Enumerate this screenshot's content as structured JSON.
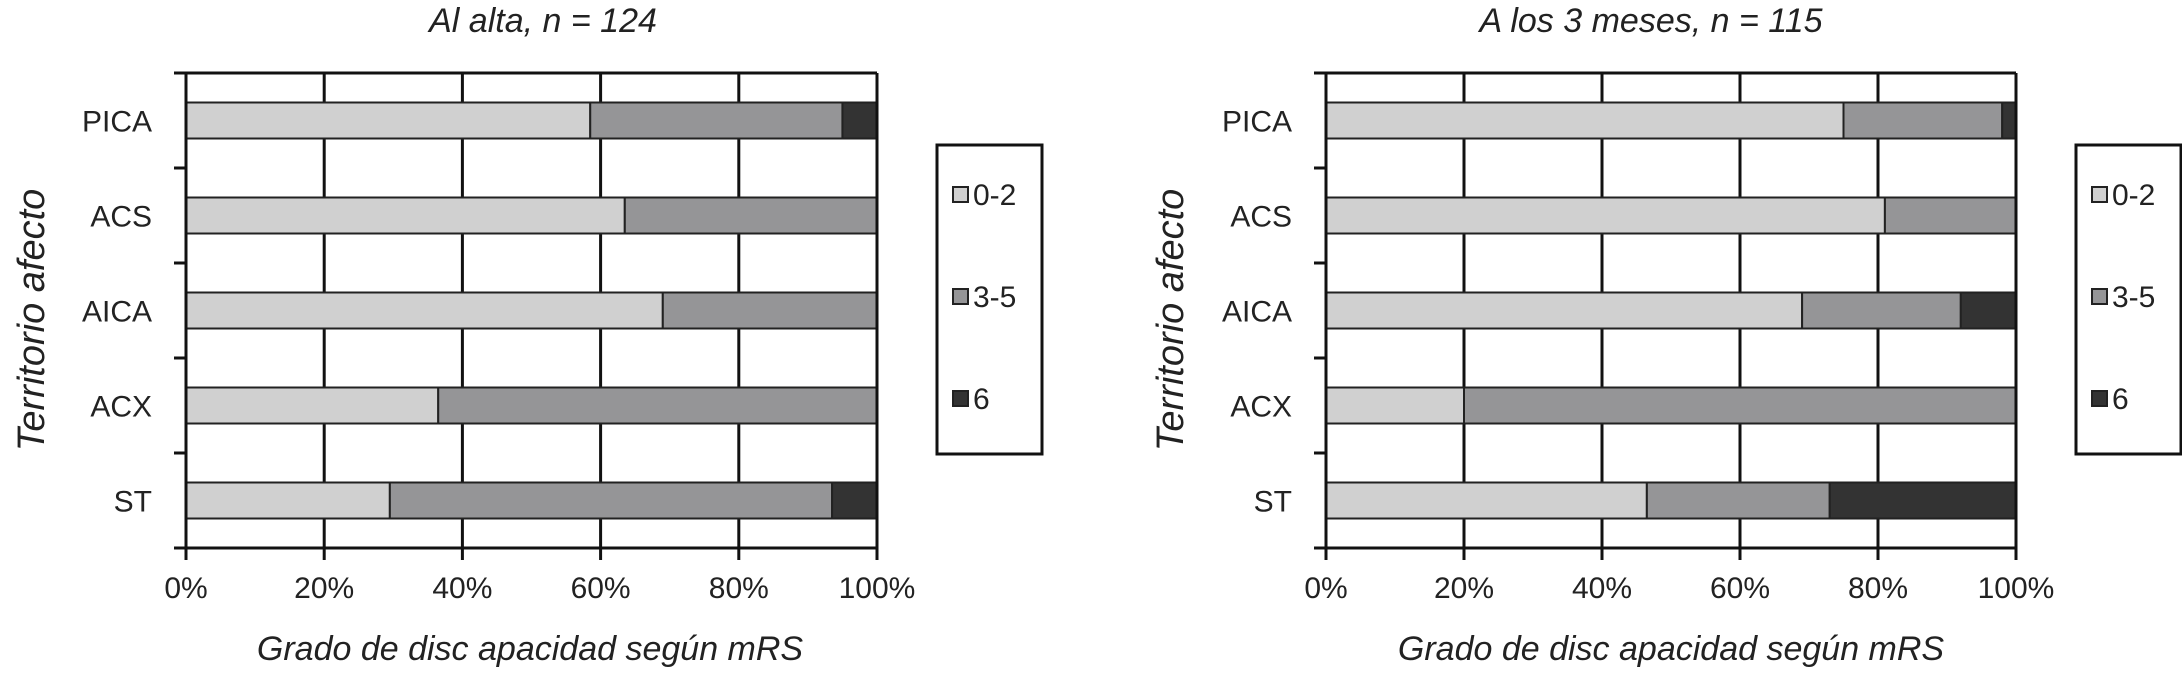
{
  "chart_data": [
    {
      "type": "bar",
      "stacked": true,
      "orientation": "horizontal",
      "title": "Al alta, n = 124",
      "xlabel": "Grado de disc apacidad según mRS",
      "ylabel": "Territorio afecto",
      "categories": [
        "PICA",
        "ACS",
        "AICA",
        "ACX",
        "ST"
      ],
      "xlim": [
        0,
        100
      ],
      "xticks": [
        "0%",
        "20%",
        "40%",
        "60%",
        "80%",
        "100%"
      ],
      "grid": "vertical",
      "legend": "right",
      "series": [
        {
          "name": "0-2",
          "color": "#d0d0d0",
          "values": [
            58.5,
            63.5,
            69,
            36.5,
            29.5
          ]
        },
        {
          "name": "3-5",
          "color": "#959597",
          "values": [
            36.5,
            36.5,
            31,
            63.5,
            64
          ]
        },
        {
          "name": "6",
          "color": "#333333",
          "values": [
            5,
            0,
            0,
            0,
            6.5
          ]
        }
      ]
    },
    {
      "type": "bar",
      "stacked": true,
      "orientation": "horizontal",
      "title": "A los 3 meses, n = 115",
      "xlabel": "Grado de disc apacidad según mRS",
      "ylabel": "Territorio afecto",
      "categories": [
        "PICA",
        "ACS",
        "AICA",
        "ACX",
        "ST"
      ],
      "xlim": [
        0,
        100
      ],
      "xticks": [
        "0%",
        "20%",
        "40%",
        "60%",
        "80%",
        "100%"
      ],
      "grid": "vertical",
      "legend": "right",
      "series": [
        {
          "name": "0-2",
          "color": "#d0d0d0",
          "values": [
            75,
            81,
            69,
            20,
            46.5
          ]
        },
        {
          "name": "3-5",
          "color": "#959597",
          "values": [
            23,
            19,
            23,
            80,
            26.5
          ]
        },
        {
          "name": "6",
          "color": "#333333",
          "values": [
            2,
            0,
            8,
            0,
            27
          ]
        }
      ]
    }
  ]
}
